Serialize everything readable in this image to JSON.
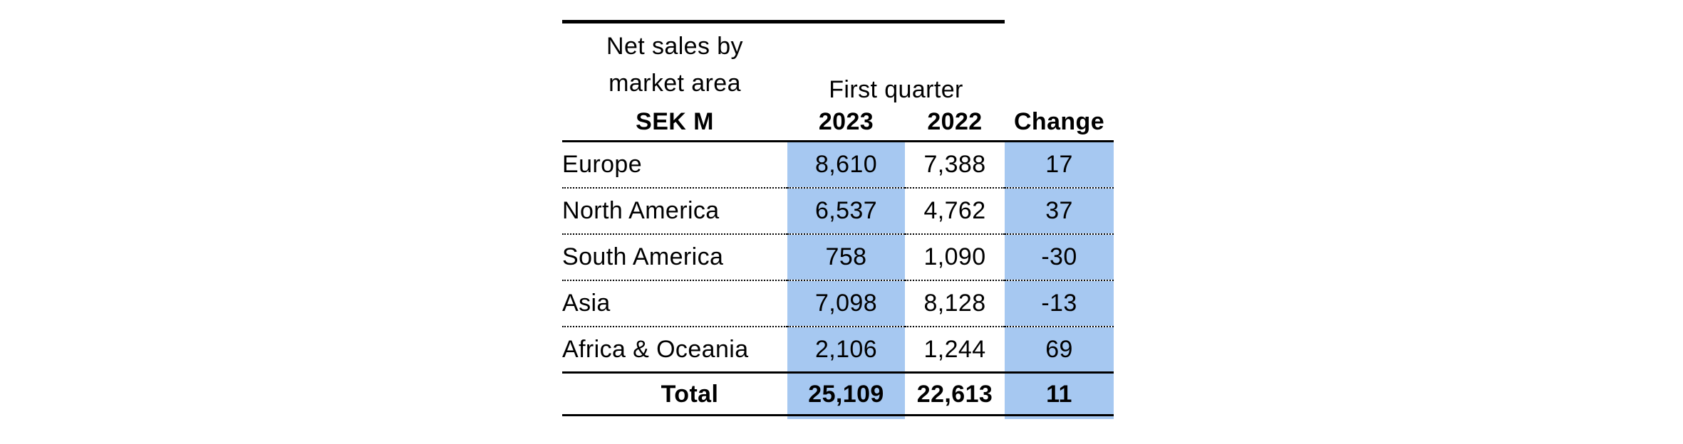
{
  "chart_data": {
    "type": "table",
    "title": "Net sales by market area",
    "title_lines": [
      "Net sales by",
      "market area"
    ],
    "unit": "SEK M",
    "column_group": "First quarter",
    "columns": [
      "2023",
      "2022",
      "Change"
    ],
    "rows": [
      {
        "label": "Europe",
        "values": [
          "8,610",
          "7,388",
          "17"
        ]
      },
      {
        "label": "North America",
        "values": [
          "6,537",
          "4,762",
          "37"
        ]
      },
      {
        "label": "South America",
        "values": [
          "758",
          "1,090",
          "-30"
        ]
      },
      {
        "label": "Asia",
        "values": [
          "7,098",
          "8,128",
          "-13"
        ]
      },
      {
        "label": "Africa & Oceania",
        "values": [
          "2,106",
          "1,244",
          "69"
        ]
      }
    ],
    "total": {
      "label": "Total",
      "values": [
        "25,109",
        "22,613",
        "11"
      ]
    },
    "highlighted_columns": [
      "2023",
      "Change"
    ],
    "highlight_color": "#a6c8f1",
    "layout": {
      "grid": "dotted row separators, solid black rules at header, above total, and bottom",
      "top_rule_spans": "label through 2022 column only"
    }
  }
}
